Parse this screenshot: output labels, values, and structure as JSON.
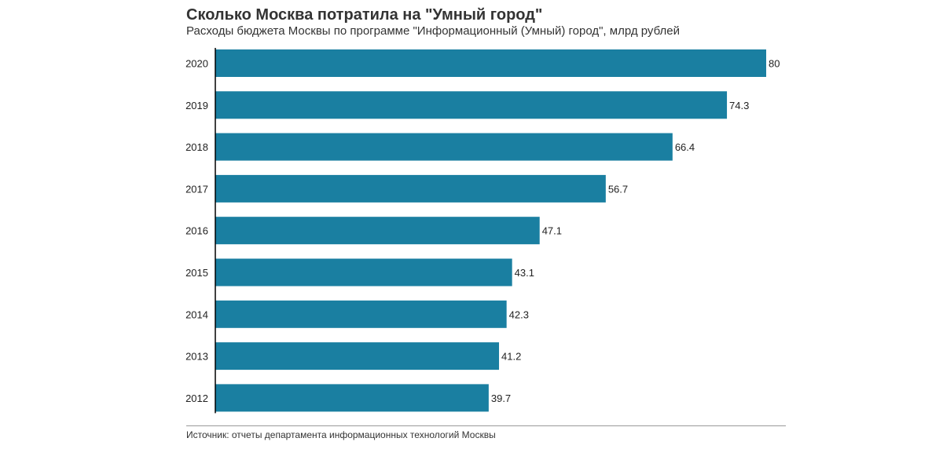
{
  "header": {
    "title": "Сколько Москва потратила на \"Умный город\"",
    "subtitle": "Расходы бюджета Москвы по программе \"Информационный (Умный) город\", млрд рублей"
  },
  "footer": {
    "source": "Источник: отчеты департамента информационных технологий Москвы"
  },
  "colors": {
    "bar": "#1a7fa1",
    "axis": "#000000",
    "text": "#222222"
  },
  "chart_data": {
    "type": "bar",
    "orientation": "horizontal",
    "title": "Сколько Москва потратила на \"Умный город\"",
    "subtitle": "Расходы бюджета Москвы по программе \"Информационный (Умный) город\", млрд рублей",
    "xlabel": "",
    "ylabel": "",
    "categories": [
      "2020",
      "2019",
      "2018",
      "2017",
      "2016",
      "2015",
      "2014",
      "2013",
      "2012"
    ],
    "values": [
      80,
      74.3,
      66.4,
      56.7,
      47.1,
      43.1,
      42.3,
      41.2,
      39.7
    ],
    "labels": [
      "80",
      "74.3",
      "66.4",
      "56.7",
      "47.1",
      "43.1",
      "42.3",
      "41.2",
      "39.7"
    ],
    "xlim": [
      0,
      80
    ],
    "grid": false,
    "legend": "none"
  }
}
